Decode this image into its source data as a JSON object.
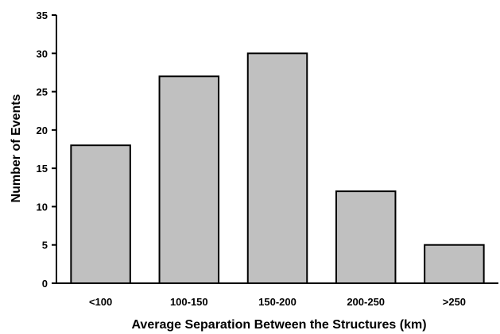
{
  "chart_data": {
    "type": "bar",
    "categories": [
      "<100",
      "100-150",
      "150-200",
      "200-250",
      ">250"
    ],
    "values": [
      18,
      27,
      30,
      12,
      5
    ],
    "title": "",
    "xlabel": "Average Separation Between the Structures (km)",
    "ylabel": "Number of Events",
    "ylim": [
      0,
      35
    ],
    "yticks": [
      0,
      5,
      10,
      15,
      20,
      25,
      30,
      35
    ],
    "grid": false,
    "legend": "none",
    "bar_color": "#c0c0c0",
    "edge_color": "#000000"
  }
}
